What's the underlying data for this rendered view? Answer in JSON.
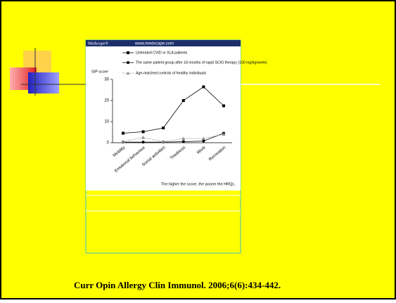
{
  "header": {
    "brand": "Medscape®",
    "url": "www.medscape.com"
  },
  "citation": "Curr Opin Allergy Clin Immunol. 2006;6(6):434-442.",
  "chart_data": {
    "type": "line",
    "y_label": "SIP score",
    "note": "The higher the score, the poorer the HRQL.",
    "categories": [
      "Mobility",
      "Emotional behaviour",
      "Social activities",
      "Tiredness",
      "Work",
      "Recreation"
    ],
    "series": [
      {
        "name": "Untreated CVID or XLA patients",
        "color": "#000000",
        "marker": "square",
        "dashed": false,
        "values": [
          4.5,
          5.2,
          7,
          20,
          26.5,
          17.5
        ]
      },
      {
        "name": "The same patient group after 18 months of rapid SCIG therapy (100 mg/kg/week)",
        "color": "#000000",
        "marker": "circle",
        "dashed": false,
        "values": [
          0.3,
          0.3,
          0.3,
          0.5,
          0.8,
          4.5
        ]
      },
      {
        "name": "Age-matched controls of healthy individuals",
        "color": "#8c8c8c",
        "marker": "triangle",
        "dashed": true,
        "values": [
          0.5,
          2.5,
          0.5,
          2,
          2,
          4
        ]
      }
    ],
    "ylim": [
      0,
      30
    ],
    "yticks": [
      0,
      10,
      20,
      30
    ]
  }
}
